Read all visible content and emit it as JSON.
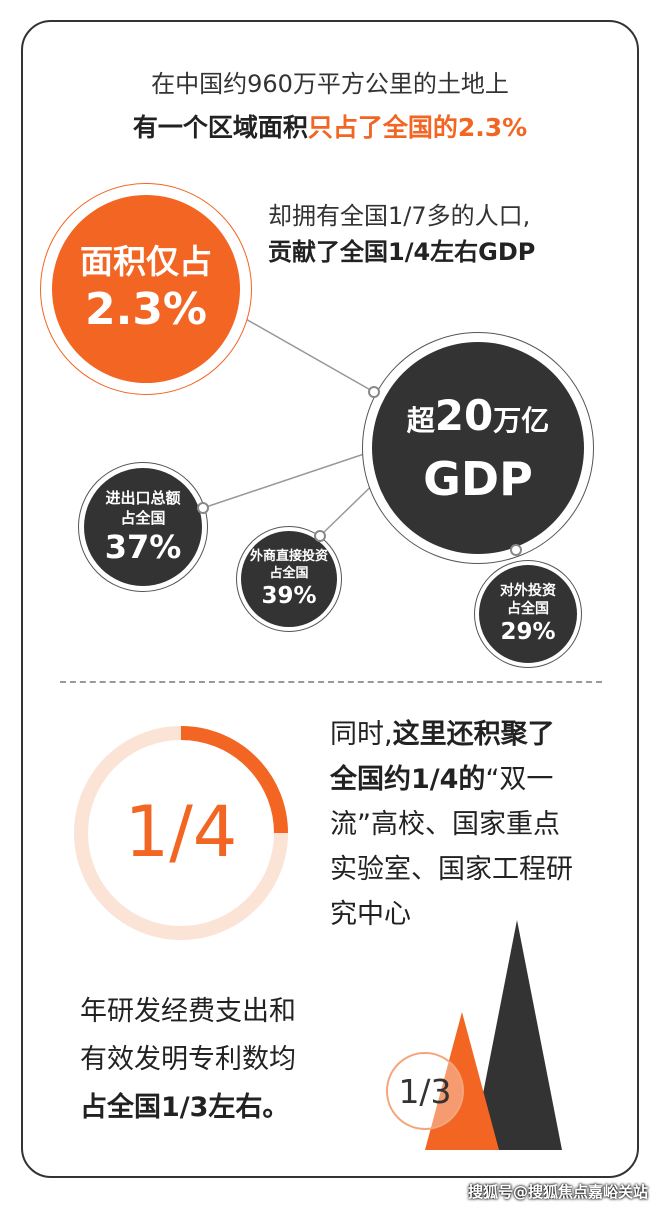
{
  "header": {
    "line1": "在中国约960万平方公里的土地上",
    "line2_prefix": "有一个区域面积",
    "line2_highlight": "只占了全国的2.3%"
  },
  "intro": {
    "line1": "却拥有全国1/7多的人口,",
    "line2": "贡献了全国1/4左右GDP"
  },
  "area_circle": {
    "line1": "面积仅占",
    "line2": "2.3%"
  },
  "gdp_circle": {
    "line1_prefix": "超",
    "line1_num": "20",
    "line1_suffix": "万亿",
    "line2": "GDP"
  },
  "stats": [
    {
      "label_line1": "进出口总额",
      "label_line2": "占全国",
      "value": "37%"
    },
    {
      "label_line1": "外商直接投资",
      "label_line2": "占全国",
      "value": "39%"
    },
    {
      "label_line1": "对外投资",
      "label_line2": "占全国",
      "value": "29%"
    }
  ],
  "education": {
    "fraction": "1/4",
    "fraction_value": 0.25,
    "line1_prefix": "同时,",
    "line1_bold": "这里还积聚了",
    "line2_bold": "全国约1/4的",
    "line2_rest": "“双一",
    "line3": "流”高校、国家重点",
    "line4": "实验室、国家工程研",
    "line5": "究中心"
  },
  "research": {
    "line1": "年研发经费支出和",
    "line2": "有效发明专利数均",
    "line3": "占全国1/3左右。",
    "fraction": "1/3"
  },
  "watermark": "搜狐号@搜狐焦点嘉峪关站",
  "colors": {
    "accent": "#f26522",
    "dark": "#333333",
    "light_orange": "#fbe3d6"
  }
}
